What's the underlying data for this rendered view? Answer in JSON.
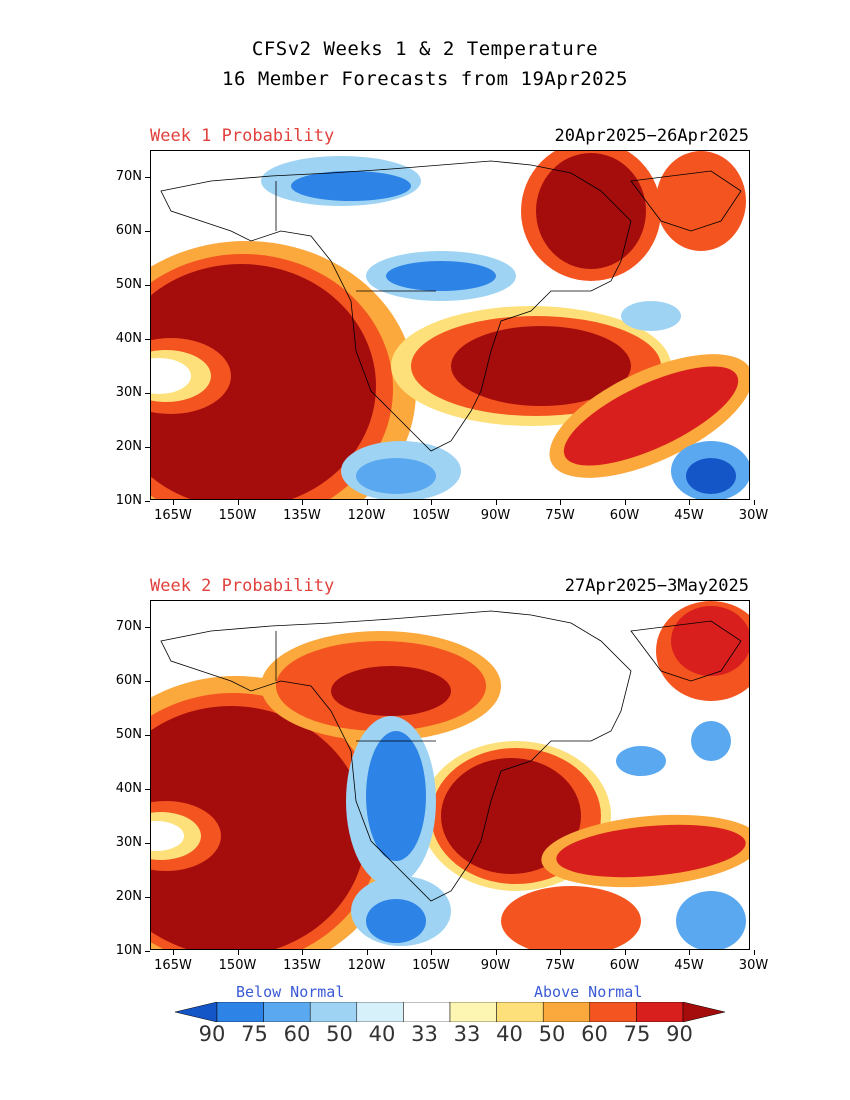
{
  "header": {
    "title_line1": "CFSv2 Weeks 1 & 2 Temperature",
    "title_line2": "16 Member Forecasts from 19Apr2025"
  },
  "panels": [
    {
      "label": "Week 1 Probability",
      "dates": "20Apr2025−26Apr2025"
    },
    {
      "label": "Week 2 Probability",
      "dates": "27Apr2025−3May2025"
    }
  ],
  "axes": {
    "lat_labels": [
      "70N",
      "60N",
      "50N",
      "40N",
      "30N",
      "20N",
      "10N"
    ],
    "lon_labels": [
      "165W",
      "150W",
      "135W",
      "120W",
      "105W",
      "90W",
      "75W",
      "60W",
      "45W",
      "30W"
    ]
  },
  "legend": {
    "below_label": "Below Normal",
    "above_label": "Above Normal",
    "numbers": [
      "90",
      "75",
      "60",
      "50",
      "40",
      "33",
      "33",
      "40",
      "50",
      "60",
      "75",
      "90"
    ],
    "colors": [
      "#1455c8",
      "#2d84e6",
      "#5aa8f0",
      "#9ed3f3",
      "#d7f1fb",
      "#ffffff",
      "#fdf5b2",
      "#fde07a",
      "#fba83c",
      "#f4541f",
      "#d91e1e",
      "#a50d0d"
    ]
  }
}
